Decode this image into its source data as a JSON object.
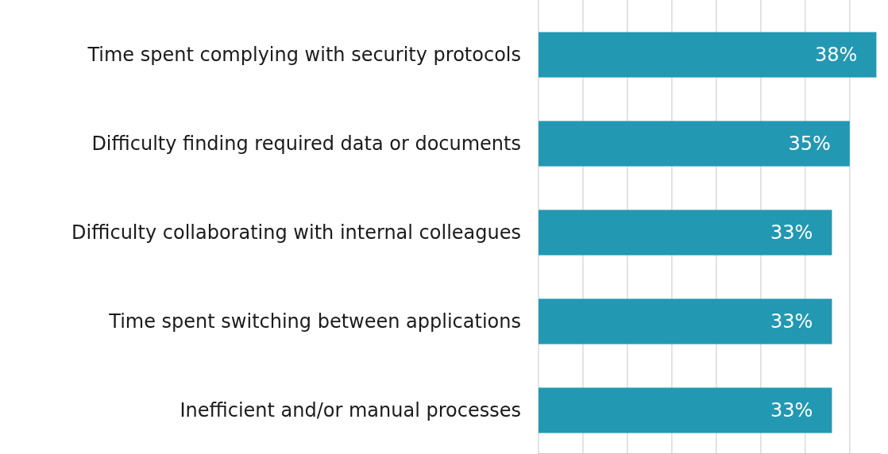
{
  "chart_data": {
    "type": "bar",
    "orientation": "horizontal",
    "categories": [
      "Time spent complying with security protocols",
      "Difficulty finding required data or documents",
      "Difficulty collaborating with internal colleagues",
      "Time spent switching between applications",
      "Inefficient and/or manual processes"
    ],
    "series": [
      {
        "color": "#2398b3",
        "values": [
          38,
          35,
          33,
          33,
          33
        ],
        "value_labels": [
          "38%",
          "35%",
          "33%",
          "33%",
          "33%"
        ]
      }
    ],
    "xlim": [
      0,
      38.5
    ],
    "xticks": [
      {
        "value": 0,
        "label": null
      },
      {
        "value": 5,
        "label": null
      },
      {
        "value": 10,
        "label": null
      },
      {
        "value": 15,
        "label": null
      },
      {
        "value": 20,
        "label": null
      },
      {
        "value": 25,
        "label": null
      },
      {
        "value": 30,
        "label": null
      },
      {
        "value": 35,
        "label": null
      }
    ],
    "tick_labels": "y",
    "grid": "x"
  }
}
